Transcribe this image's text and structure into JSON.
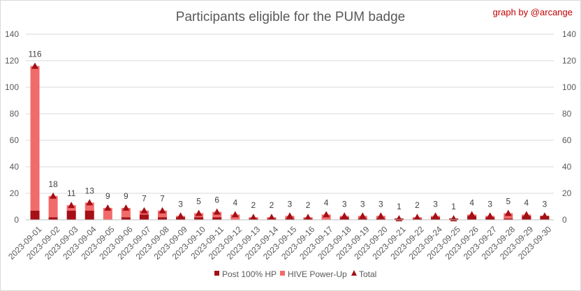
{
  "chart_data": {
    "type": "bar",
    "stacked": true,
    "title": "Participants eligible for the PUM badge",
    "credit": "graph by @arcange",
    "xlabel": "",
    "ylabel": "",
    "ylim": [
      0,
      140
    ],
    "yticks": [
      0,
      20,
      40,
      60,
      80,
      100,
      120,
      140
    ],
    "secondary_axis": true,
    "grid": true,
    "legend_position": "bottom",
    "categories": [
      "2023-09-01",
      "2023-09-02",
      "2023-09-03",
      "2023-09-04",
      "2023-09-05",
      "2023-09-06",
      "2023-09-07",
      "2023-09-08",
      "2023-09-09",
      "2023-09-10",
      "2023-09-11",
      "2023-09-12",
      "2023-09-13",
      "2023-09-14",
      "2023-09-15",
      "2023-09-16",
      "2023-09-17",
      "2023-09-18",
      "2023-09-19",
      "2023-09-20",
      "2023-09-21",
      "2023-09-22",
      "2023-09-24",
      "2023-09-25",
      "2023-09-26",
      "2023-09-27",
      "2023-09-28",
      "2023-09-29",
      "2023-09-30"
    ],
    "series": [
      {
        "name": "Post 100% HP",
        "kind": "bar",
        "color": "#a50f15",
        "values": [
          7,
          2,
          7,
          7,
          0,
          2,
          4,
          2,
          2,
          2,
          2,
          0,
          1,
          1,
          1,
          1,
          0,
          2,
          1,
          1,
          1,
          1,
          2,
          1,
          3,
          2,
          1,
          3,
          3
        ]
      },
      {
        "name": "HIVE Power-Up",
        "kind": "bar",
        "color": "#f26b6b",
        "values": [
          109,
          16,
          4,
          6,
          9,
          7,
          3,
          5,
          1,
          3,
          4,
          4,
          1,
          1,
          2,
          1,
          4,
          1,
          2,
          2,
          0,
          1,
          1,
          0,
          1,
          1,
          4,
          1,
          0
        ]
      },
      {
        "name": "Total",
        "kind": "marker",
        "color": "#a50f15",
        "values": [
          116,
          18,
          11,
          13,
          9,
          9,
          7,
          7,
          3,
          5,
          6,
          4,
          2,
          2,
          3,
          2,
          4,
          3,
          3,
          3,
          1,
          2,
          3,
          1,
          4,
          3,
          5,
          4,
          3
        ]
      }
    ]
  }
}
